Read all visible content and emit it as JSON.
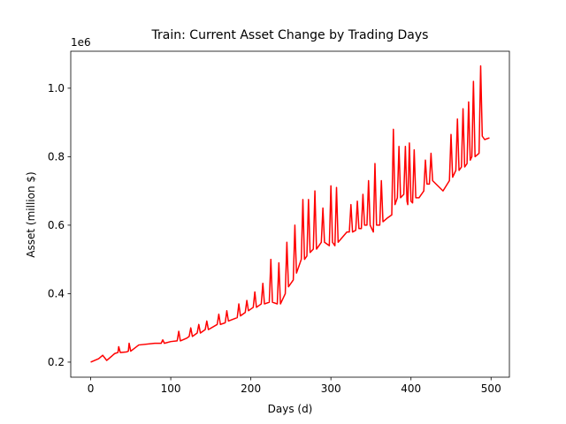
{
  "chart_data": {
    "type": "line",
    "title": "Train: Current Asset Change by Trading Days",
    "xlabel": "Days (d)",
    "ylabel": "Asset (million $)",
    "y_offset_label": "1e6",
    "xlim": [
      -24.9,
      522.9
    ],
    "ylim": [
      0.156,
      1.108
    ],
    "xticks": [
      0,
      100,
      200,
      300,
      400,
      500
    ],
    "yticks": [
      0.2,
      0.4,
      0.6,
      0.8,
      {
        "value": 1,
        "label": "1.0"
      }
    ],
    "grid": false,
    "x": [
      0,
      10,
      15,
      20,
      30,
      34,
      35,
      37,
      45,
      47,
      48,
      50,
      60,
      80,
      88,
      90,
      92,
      100,
      108,
      110,
      112,
      120,
      123,
      125,
      127,
      133,
      135,
      137,
      143,
      145,
      147,
      158,
      160,
      162,
      168,
      170,
      172,
      183,
      185,
      187,
      193,
      195,
      197,
      203,
      205,
      207,
      213,
      215,
      217,
      223,
      225,
      227,
      233,
      235,
      237,
      243,
      245,
      247,
      253,
      255,
      257,
      263,
      265,
      267,
      270,
      272,
      274,
      278,
      280,
      282,
      288,
      290,
      292,
      298,
      300,
      302,
      305,
      307,
      309,
      320,
      323,
      325,
      327,
      331,
      333,
      335,
      338,
      340,
      342,
      345,
      347,
      349,
      353,
      355,
      357,
      361,
      363,
      365,
      370,
      376,
      378,
      380,
      383,
      385,
      387,
      391,
      393,
      395,
      396,
      398,
      400,
      402,
      404,
      406,
      410,
      416,
      418,
      420,
      423,
      425,
      427,
      440,
      448,
      450,
      452,
      456,
      458,
      460,
      463,
      465,
      467,
      470,
      472,
      474,
      476,
      478,
      480,
      485,
      487,
      489,
      492,
      498
    ],
    "series": [
      {
        "name": "Asset",
        "color": "#ff0000",
        "values": [
          0.2,
          0.21,
          0.22,
          0.205,
          0.225,
          0.228,
          0.245,
          0.228,
          0.23,
          0.232,
          0.255,
          0.232,
          0.25,
          0.255,
          0.255,
          0.265,
          0.255,
          0.26,
          0.262,
          0.29,
          0.262,
          0.27,
          0.275,
          0.3,
          0.275,
          0.285,
          0.31,
          0.285,
          0.295,
          0.32,
          0.295,
          0.31,
          0.34,
          0.31,
          0.315,
          0.35,
          0.32,
          0.33,
          0.37,
          0.335,
          0.345,
          0.38,
          0.35,
          0.36,
          0.405,
          0.36,
          0.37,
          0.43,
          0.37,
          0.375,
          0.5,
          0.375,
          0.37,
          0.49,
          0.37,
          0.4,
          0.55,
          0.42,
          0.44,
          0.6,
          0.46,
          0.5,
          0.675,
          0.5,
          0.51,
          0.675,
          0.52,
          0.53,
          0.7,
          0.53,
          0.55,
          0.65,
          0.55,
          0.54,
          0.715,
          0.55,
          0.54,
          0.71,
          0.55,
          0.58,
          0.58,
          0.66,
          0.58,
          0.585,
          0.67,
          0.59,
          0.59,
          0.69,
          0.6,
          0.6,
          0.73,
          0.6,
          0.58,
          0.78,
          0.6,
          0.6,
          0.73,
          0.61,
          0.62,
          0.63,
          0.88,
          0.66,
          0.68,
          0.83,
          0.68,
          0.69,
          0.83,
          0.67,
          0.66,
          0.84,
          0.67,
          0.665,
          0.82,
          0.68,
          0.68,
          0.7,
          0.79,
          0.72,
          0.72,
          0.81,
          0.73,
          0.7,
          0.73,
          0.865,
          0.74,
          0.76,
          0.91,
          0.76,
          0.77,
          0.94,
          0.77,
          0.78,
          0.96,
          0.79,
          0.8,
          1.02,
          0.8,
          0.81,
          1.065,
          0.86,
          0.85,
          0.855
        ]
      }
    ]
  }
}
